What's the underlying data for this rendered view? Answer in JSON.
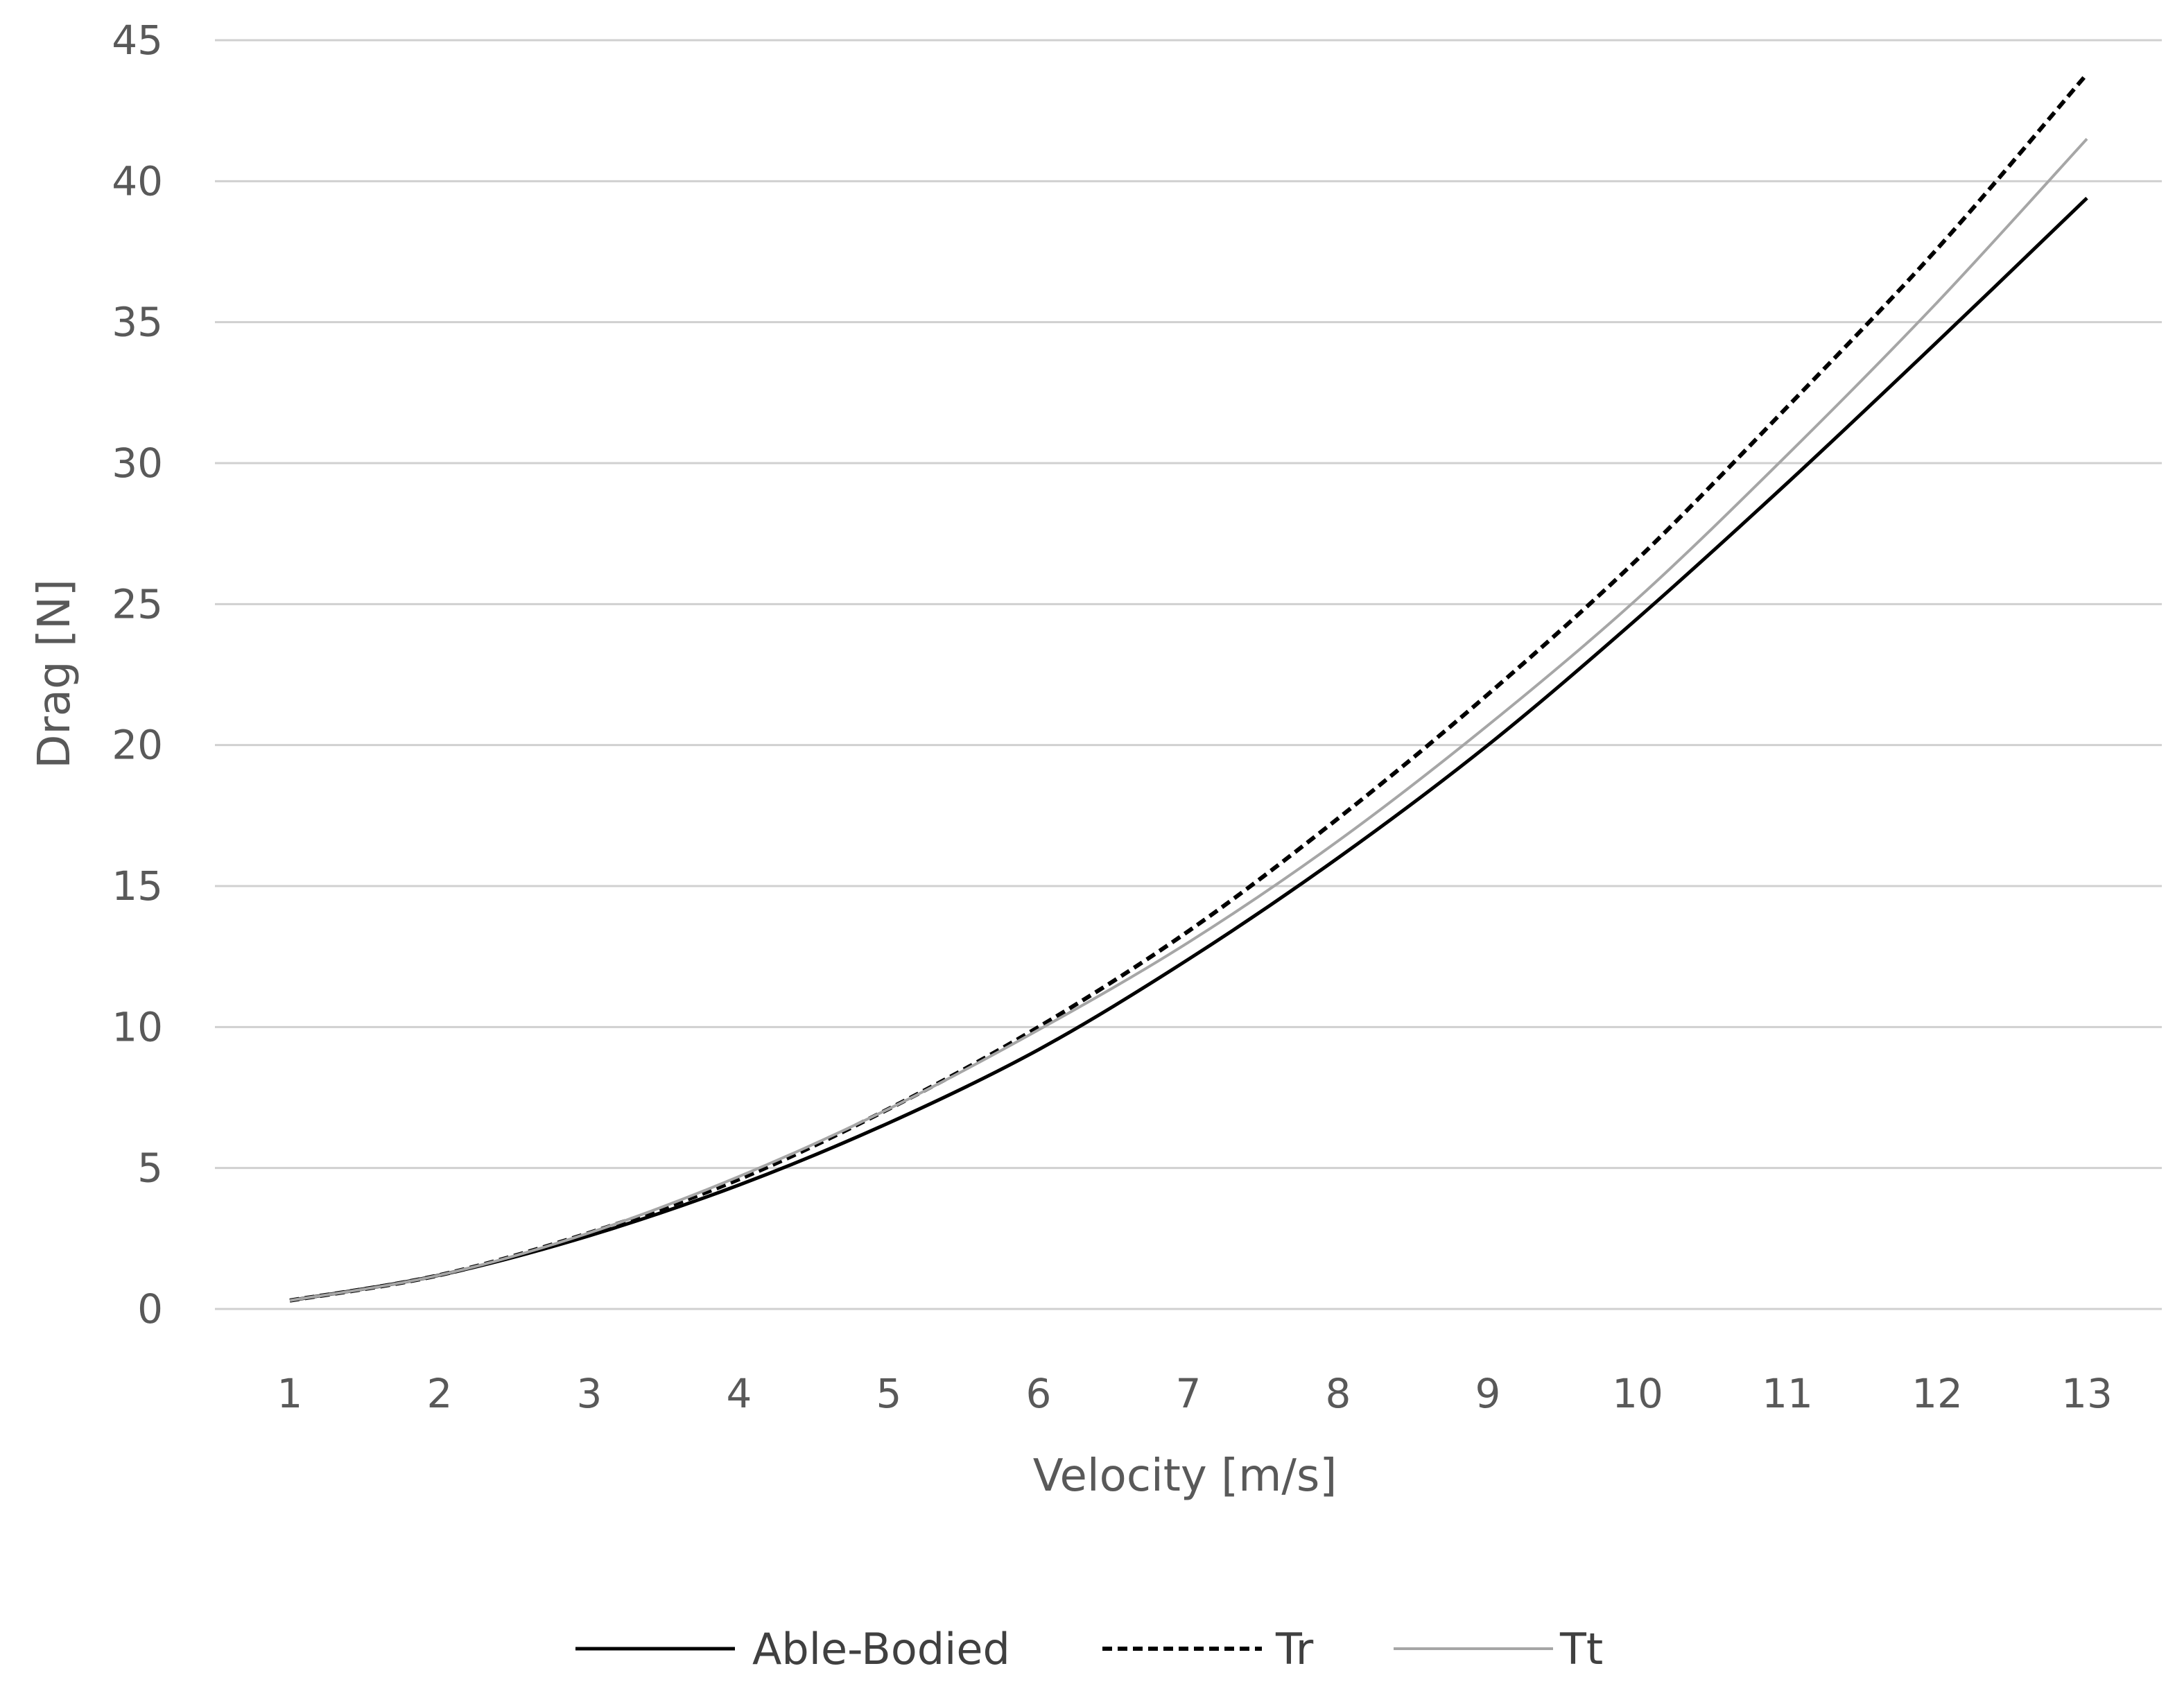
{
  "chart_data": {
    "type": "line",
    "title": "",
    "xlabel": "Velocity [m/s]",
    "ylabel": "Drag  [N]",
    "x": [
      1,
      2,
      3,
      4,
      5,
      6,
      7,
      8,
      9,
      10,
      11,
      12,
      13
    ],
    "xlim": [
      0.5,
      13.5
    ],
    "ylim": [
      0,
      45
    ],
    "yticks": [
      0,
      5,
      10,
      15,
      20,
      25,
      30,
      35,
      40,
      45
    ],
    "grid": "horizontal",
    "legend": "bottom",
    "series": [
      {
        "name": "Able-Bodied",
        "color": "#000000",
        "style": "solid",
        "values": [
          0.3,
          1.2,
          2.6,
          4.4,
          6.6,
          9.2,
          12.4,
          16.0,
          20.0,
          24.5,
          29.3,
          34.3,
          39.4
        ]
      },
      {
        "name": "Tr",
        "color": "#000000",
        "style": "dashed",
        "values": [
          0.3,
          1.2,
          2.7,
          4.6,
          7.1,
          10.0,
          13.4,
          17.4,
          21.8,
          26.6,
          32.0,
          37.6,
          43.8
        ]
      },
      {
        "name": "Tt",
        "color": "#a6a6a6",
        "style": "solid",
        "values": [
          0.3,
          1.2,
          2.7,
          4.7,
          7.1,
          9.9,
          13.0,
          16.6,
          20.7,
          25.2,
          30.3,
          35.7,
          41.5
        ]
      }
    ]
  }
}
